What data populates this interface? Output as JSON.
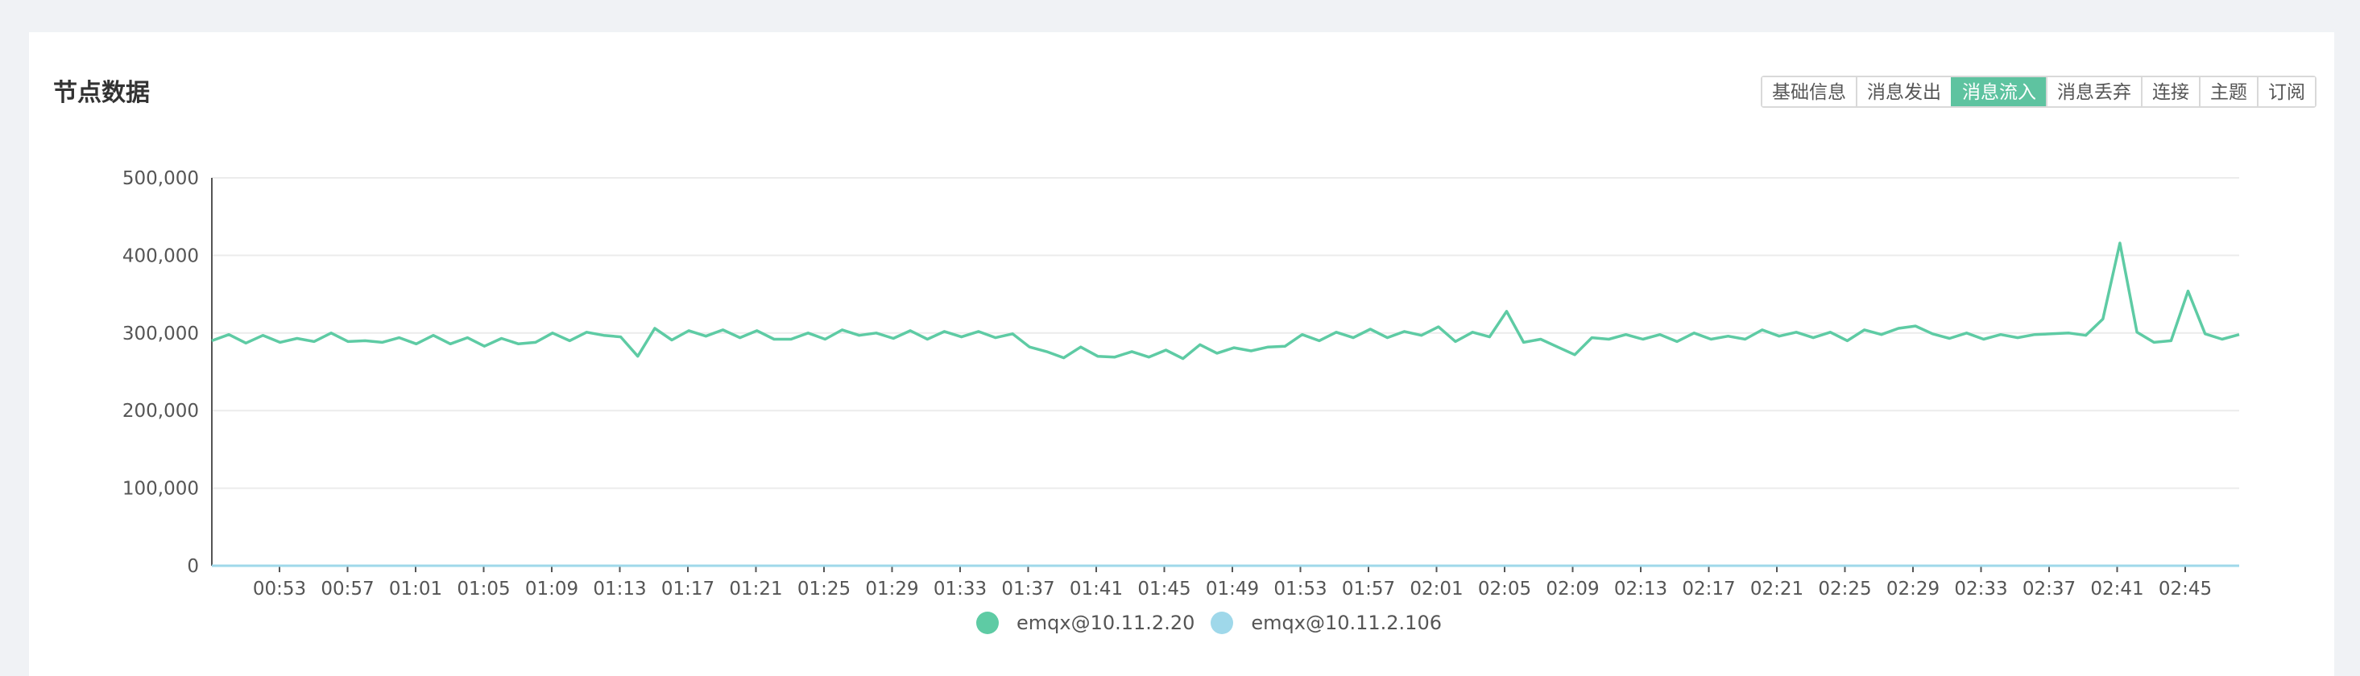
{
  "card": {
    "title": "节点数据"
  },
  "tabs": [
    {
      "label": "基础信息",
      "active": false
    },
    {
      "label": "消息发出",
      "active": false
    },
    {
      "label": "消息流入",
      "active": true
    },
    {
      "label": "消息丢弃",
      "active": false
    },
    {
      "label": "连接",
      "active": false
    },
    {
      "label": "主题",
      "active": false
    },
    {
      "label": "订阅",
      "active": false
    }
  ],
  "colors": {
    "accent": "#5ec3a0",
    "series1": "#5ecba4",
    "series2": "#9fd8ea",
    "grid": "#ececec",
    "axis": "#555555"
  },
  "chart_data": {
    "type": "line",
    "grid": true,
    "legend_position": "bottom-center",
    "ylim": [
      0,
      500000
    ],
    "yticks": [
      "0",
      "100,000",
      "200,000",
      "300,000",
      "400,000",
      "500,000"
    ],
    "xticks": [
      "00:53",
      "00:57",
      "01:01",
      "01:05",
      "01:09",
      "01:13",
      "01:17",
      "01:21",
      "01:25",
      "01:29",
      "01:33",
      "01:37",
      "01:41",
      "01:45",
      "01:49",
      "01:53",
      "01:57",
      "02:01",
      "02:05",
      "02:09",
      "02:13",
      "02:17",
      "02:21",
      "02:25",
      "02:29",
      "02:33",
      "02:37",
      "02:41",
      "02:45"
    ],
    "series": [
      {
        "name": "emqx@10.11.2.20",
        "values": [
          290000,
          298000,
          287000,
          297000,
          288000,
          293000,
          289000,
          300000,
          289000,
          290000,
          288000,
          294000,
          286000,
          297000,
          286000,
          294000,
          283000,
          293000,
          286000,
          288000,
          300000,
          290000,
          301000,
          297000,
          295000,
          270000,
          306000,
          291000,
          303000,
          296000,
          304000,
          294000,
          303000,
          292000,
          292000,
          300000,
          292000,
          304000,
          297000,
          300000,
          293000,
          303000,
          292000,
          302000,
          295000,
          302000,
          294000,
          299000,
          282000,
          276000,
          268000,
          282000,
          270000,
          269000,
          276000,
          269000,
          278000,
          267000,
          285000,
          274000,
          281000,
          277000,
          282000,
          283000,
          298000,
          290000,
          301000,
          294000,
          305000,
          294000,
          302000,
          297000,
          308000,
          289000,
          301000,
          295000,
          328000,
          288000,
          292000,
          282000,
          272000,
          294000,
          292000,
          298000,
          292000,
          298000,
          289000,
          300000,
          292000,
          296000,
          292000,
          304000,
          296000,
          301000,
          294000,
          301000,
          290000,
          304000,
          298000,
          306000,
          309000,
          299000,
          293000,
          300000,
          292000,
          298000,
          294000,
          298000,
          299000,
          300000,
          297000,
          318000,
          416000,
          301000,
          288000,
          290000,
          354000,
          299000,
          292000,
          298000
        ]
      },
      {
        "name": "emqx@10.11.2.106",
        "values": [
          0
        ]
      }
    ]
  }
}
